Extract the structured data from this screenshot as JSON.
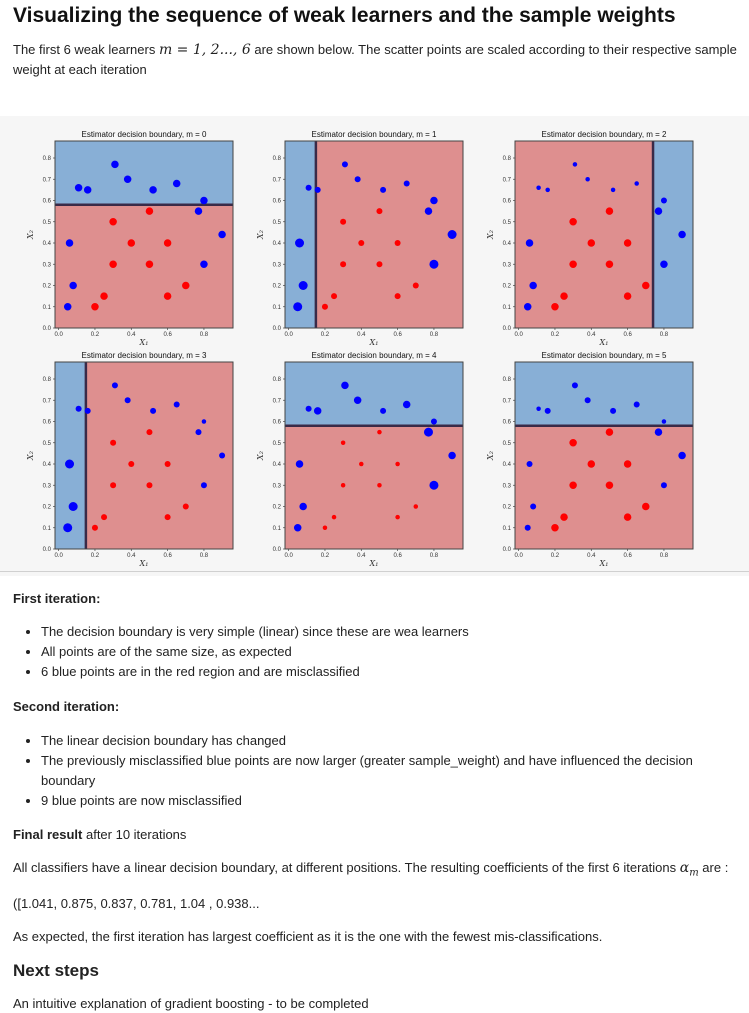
{
  "title": "Visualizing the sequence of weak learners and the sample weights",
  "intro": {
    "before": "The first 6 weak learners ",
    "math": "m = 1, 2..., 6",
    "after": " are shown below. The scatter points are scaled according to their respective sample weight at each iteration"
  },
  "first_iteration": {
    "heading": "First iteration:",
    "bullets": [
      "The decision boundary is very simple (linear) since these are wea learners",
      "All points are of the same size, as expected",
      "6 blue points are in the red region and are misclassified"
    ]
  },
  "second_iteration": {
    "heading": "Second iteration:",
    "bullets": [
      "The linear decision boundary has changed",
      "The previously misclassified blue points are now larger (greater sample_weight) and have influenced the decision boundary",
      "9 blue points are now misclassified"
    ]
  },
  "final_result": {
    "bold": "Final result",
    "rest": " after 10 iterations"
  },
  "classifiers_text": {
    "before": "All classifiers have a linear decision boundary, at different positions. The resulting coefficients of the first 6 iterations ",
    "math": "α",
    "math_sub": "m",
    "after": " are :"
  },
  "coefficients": "([1.041, 0.875, 0.837, 0.781, 1.04 , 0.938...",
  "expected_text": "As expected, the first iteration has largest coefficient as it is the one with the fewest mis-classifications.",
  "next_steps": {
    "heading": "Next steps",
    "text": "An intuitive explanation of gradient boosting - to be completed"
  },
  "colors": {
    "blue_region": "#88afd6",
    "red_region": "#de8f8f",
    "blue_point": "#0000ff",
    "red_point": "#ff0000",
    "boundary": "#3a2a48"
  },
  "chart_data": {
    "type": "scatter",
    "xlabel": "X₁",
    "ylabel": "X₂",
    "xticks": [
      "0.0",
      "0.2",
      "0.4",
      "0.6",
      "0.8"
    ],
    "yticks": [
      "0.0",
      "0.1",
      "0.2",
      "0.3",
      "0.4",
      "0.5",
      "0.6",
      "0.7",
      "0.8"
    ],
    "xlim": [
      -0.02,
      0.96
    ],
    "ylim": [
      0.0,
      0.88
    ],
    "grid": false,
    "blue_points": [
      [
        0.31,
        0.77
      ],
      [
        0.38,
        0.7
      ],
      [
        0.11,
        0.66
      ],
      [
        0.16,
        0.65
      ],
      [
        0.52,
        0.65
      ],
      [
        0.65,
        0.68
      ],
      [
        0.8,
        0.6
      ],
      [
        0.77,
        0.55
      ],
      [
        0.06,
        0.4
      ],
      [
        0.9,
        0.44
      ],
      [
        0.8,
        0.3
      ],
      [
        0.08,
        0.2
      ],
      [
        0.05,
        0.1
      ]
    ],
    "red_points": [
      [
        0.5,
        0.55
      ],
      [
        0.3,
        0.5
      ],
      [
        0.4,
        0.4
      ],
      [
        0.6,
        0.4
      ],
      [
        0.3,
        0.3
      ],
      [
        0.5,
        0.3
      ],
      [
        0.7,
        0.2
      ],
      [
        0.25,
        0.15
      ],
      [
        0.2,
        0.1
      ],
      [
        0.6,
        0.15
      ]
    ],
    "panels": [
      {
        "title": "Estimator decision boundary, m = 0",
        "split": "horizontal",
        "threshold": 0.58,
        "low_side": "red",
        "blue_sizes": [
          5,
          5,
          5,
          5,
          5,
          5,
          5,
          5,
          5,
          5,
          5,
          5,
          5
        ],
        "red_sizes": [
          5,
          5,
          5,
          5,
          5,
          5,
          5,
          5,
          5,
          5
        ]
      },
      {
        "title": "Estimator decision boundary, m = 1",
        "split": "vertical",
        "threshold": 0.15,
        "low_side": "blue",
        "blue_sizes": [
          4,
          4,
          4,
          4,
          4,
          4,
          5,
          5,
          6,
          6,
          6,
          6,
          6
        ],
        "red_sizes": [
          4,
          4,
          4,
          4,
          4,
          4,
          4,
          4,
          4,
          4
        ]
      },
      {
        "title": "Estimator decision boundary, m = 2",
        "split": "vertical",
        "threshold": 0.74,
        "low_side": "red",
        "blue_sizes": [
          3,
          3,
          3,
          3,
          3,
          3,
          4,
          5,
          5,
          5,
          5,
          5,
          5
        ],
        "red_sizes": [
          5,
          5,
          5,
          5,
          5,
          5,
          5,
          5,
          5,
          5
        ]
      },
      {
        "title": "Estimator decision boundary, m = 3",
        "split": "vertical",
        "threshold": 0.15,
        "low_side": "blue",
        "blue_sizes": [
          4,
          4,
          4,
          4,
          4,
          4,
          3,
          4,
          6,
          4,
          4,
          6,
          6
        ],
        "red_sizes": [
          4,
          4,
          4,
          4,
          4,
          4,
          4,
          4,
          4,
          4
        ]
      },
      {
        "title": "Estimator decision boundary, m = 4",
        "split": "horizontal",
        "threshold": 0.58,
        "low_side": "red",
        "blue_sizes": [
          5,
          5,
          4,
          5,
          4,
          5,
          4,
          6,
          5,
          5,
          6,
          5,
          5
        ],
        "red_sizes": [
          3,
          3,
          3,
          3,
          3,
          3,
          3,
          3,
          3,
          3
        ]
      },
      {
        "title": "Estimator decision boundary, m = 5",
        "split": "horizontal",
        "threshold": 0.58,
        "low_side": "red",
        "blue_sizes": [
          4,
          4,
          3,
          4,
          4,
          4,
          3,
          5,
          4,
          5,
          4,
          4,
          4
        ],
        "red_sizes": [
          5,
          5,
          5,
          5,
          5,
          5,
          5,
          5,
          5,
          5
        ]
      }
    ]
  }
}
